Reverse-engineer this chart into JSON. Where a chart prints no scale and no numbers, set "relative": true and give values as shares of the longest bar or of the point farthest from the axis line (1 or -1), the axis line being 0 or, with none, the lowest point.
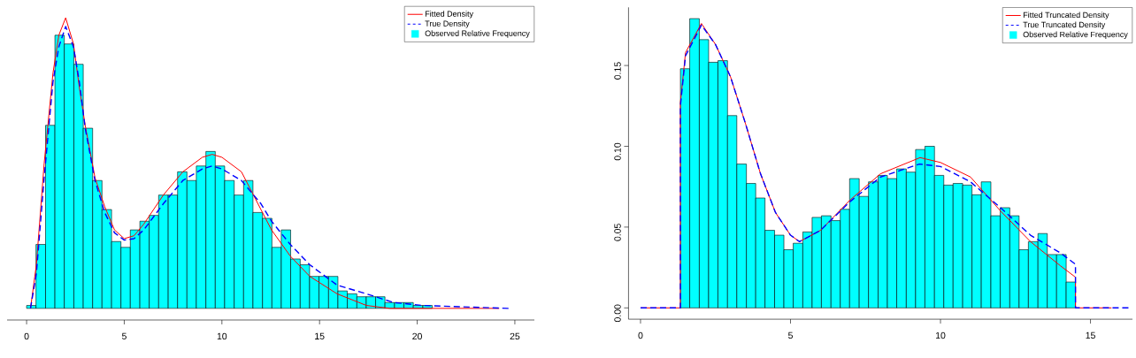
{
  "chart_data": [
    {
      "type": "histogram",
      "relative": true,
      "legend": "top right",
      "xlim": [
        -1,
        26
      ],
      "xticks": [
        0,
        5,
        10,
        15,
        20,
        25
      ],
      "series": [
        {
          "type": "line",
          "name": "Fitted Density",
          "color": "#ff0000",
          "line_style": "solid",
          "x": [
            0.2,
            0.5,
            0.9,
            1.35,
            1.65,
            2.0,
            2.4,
            2.7,
            3.0,
            3.5,
            4.0,
            4.5,
            5.0,
            5.5,
            6.0,
            7.0,
            8.0,
            9.0,
            9.5,
            10.0,
            11.0,
            12.0,
            12.54,
            13.5,
            14.5,
            15.9,
            17.4,
            18.6,
            24.2
          ],
          "values": [
            0,
            0.15,
            0.5,
            0.81,
            0.94,
            1.0,
            0.91,
            0.76,
            0.63,
            0.45,
            0.35,
            0.27,
            0.24,
            0.25,
            0.29,
            0.39,
            0.47,
            0.52,
            0.53,
            0.52,
            0.47,
            0.34,
            0.27,
            0.18,
            0.11,
            0.05,
            0.01,
            0,
            0
          ]
        },
        {
          "type": "line",
          "name": "True Density",
          "color": "#0000ff",
          "line_style": "dashed",
          "x": [
            0.2,
            0.5,
            0.9,
            1.35,
            1.65,
            2.0,
            2.4,
            2.7,
            3.0,
            3.5,
            4.0,
            4.5,
            5.0,
            5.5,
            6.0,
            7.0,
            8.0,
            9.0,
            9.5,
            10.0,
            11.0,
            12.0,
            12.54,
            13.5,
            14.5,
            15.9,
            17.4,
            18.8,
            20.3,
            24.7
          ],
          "values": [
            0,
            0.12,
            0.45,
            0.78,
            0.9,
            0.97,
            0.9,
            0.78,
            0.62,
            0.44,
            0.33,
            0.26,
            0.235,
            0.24,
            0.27,
            0.36,
            0.44,
            0.48,
            0.49,
            0.48,
            0.44,
            0.36,
            0.3,
            0.22,
            0.15,
            0.08,
            0.05,
            0.02,
            0.01,
            0
          ]
        },
        {
          "type": "histogram",
          "name": "Observed Relative Frequency",
          "color": "#00ffff",
          "bins": [
            0,
            0.48,
            0.97,
            1.45,
            1.93,
            2.42,
            2.9,
            3.38,
            3.86,
            4.35,
            4.83,
            5.31,
            5.8,
            6.28,
            6.76,
            7.25,
            7.73,
            8.21,
            8.69,
            9.18,
            9.66,
            10.14,
            10.63,
            11.11,
            11.59,
            12.08,
            12.56,
            13.04,
            13.52,
            14.01,
            14.49,
            14.97,
            15.46,
            15.94,
            16.42,
            16.91,
            17.39,
            17.87,
            18.35,
            18.84,
            19.32,
            19.8,
            20.29,
            20.77
          ],
          "values": [
            0.01,
            0.22,
            0.63,
            0.94,
            0.91,
            0.84,
            0.62,
            0.44,
            0.34,
            0.23,
            0.21,
            0.27,
            0.3,
            0.32,
            0.39,
            0.39,
            0.47,
            0.44,
            0.49,
            0.54,
            0.49,
            0.44,
            0.39,
            0.44,
            0.33,
            0.31,
            0.21,
            0.27,
            0.17,
            0.15,
            0.11,
            0.11,
            0.11,
            0.06,
            0.05,
            0.04,
            0.04,
            0.04,
            0.02,
            0.02,
            0.02,
            0.01,
            0.01
          ]
        }
      ]
    },
    {
      "type": "histogram",
      "legend": "top right",
      "xlim": [
        -0.4,
        16.4
      ],
      "xticks": [
        0,
        5,
        10,
        15
      ],
      "ylim": [
        -0.007,
        0.186
      ],
      "yticks": [
        {
          "value": 0,
          "label": "0.00"
        },
        {
          "value": 0.05,
          "label": "0.05"
        },
        {
          "value": 0.1,
          "label": "0.10"
        },
        {
          "value": 0.15,
          "label": "0.15"
        }
      ],
      "series": [
        {
          "type": "line",
          "name": "Fitted Truncated Density",
          "color": "#ff0000",
          "line_style": "solid",
          "x": [
            0,
            1.33,
            1.33,
            1.5,
            2.03,
            2.5,
            3,
            3.5,
            4,
            4.5,
            5,
            5.3,
            6,
            7,
            8,
            9.32,
            10,
            11,
            12,
            13,
            14,
            14.5,
            14.5,
            15.7
          ],
          "values": [
            0,
            0,
            0.127,
            0.158,
            0.176,
            0.163,
            0.143,
            0.114,
            0.083,
            0.059,
            0.045,
            0.041,
            0.048,
            0.067,
            0.083,
            0.093,
            0.09,
            0.081,
            0.06,
            0.041,
            0.026,
            0.019,
            0,
            0
          ]
        },
        {
          "type": "line",
          "name": "True Truncated Density",
          "color": "#0000ff",
          "line_style": "dashed",
          "x": [
            0,
            1.33,
            1.33,
            1.5,
            2.03,
            2.5,
            3,
            3.5,
            4,
            4.5,
            5,
            5.3,
            6,
            7,
            8,
            9.3,
            10,
            11,
            12,
            13,
            14,
            14.5,
            14.5,
            16.3
          ],
          "values": [
            0,
            0,
            0.125,
            0.156,
            0.175,
            0.163,
            0.143,
            0.114,
            0.083,
            0.059,
            0.045,
            0.041,
            0.048,
            0.066,
            0.081,
            0.089,
            0.0875,
            0.078,
            0.062,
            0.045,
            0.034,
            0.027,
            0,
            0
          ]
        },
        {
          "type": "histogram",
          "name": "Observed Relative Frequency",
          "color": "#00ffff",
          "bins": [
            1.33,
            1.64,
            1.96,
            2.27,
            2.58,
            2.9,
            3.21,
            3.53,
            3.84,
            4.15,
            4.47,
            4.78,
            5.09,
            5.41,
            5.72,
            6.03,
            6.35,
            6.66,
            6.97,
            7.29,
            7.6,
            7.92,
            8.23,
            8.54,
            8.86,
            9.17,
            9.48,
            9.8,
            10.11,
            10.42,
            10.74,
            11.05,
            11.36,
            11.68,
            11.99,
            12.31,
            12.62,
            12.93,
            13.25,
            13.56,
            13.87,
            14.19,
            14.5
          ],
          "values": [
            0.148,
            0.179,
            0.166,
            0.152,
            0.153,
            0.119,
            0.089,
            0.077,
            0.068,
            0.048,
            0.045,
            0.036,
            0.04,
            0.047,
            0.056,
            0.057,
            0.054,
            0.061,
            0.08,
            0.069,
            0.078,
            0.082,
            0.08,
            0.086,
            0.084,
            0.098,
            0.1,
            0.082,
            0.076,
            0.077,
            0.076,
            0.07,
            0.078,
            0.057,
            0.062,
            0.057,
            0.036,
            0.041,
            0.046,
            0.033,
            0.033,
            0.016
          ]
        }
      ]
    }
  ]
}
